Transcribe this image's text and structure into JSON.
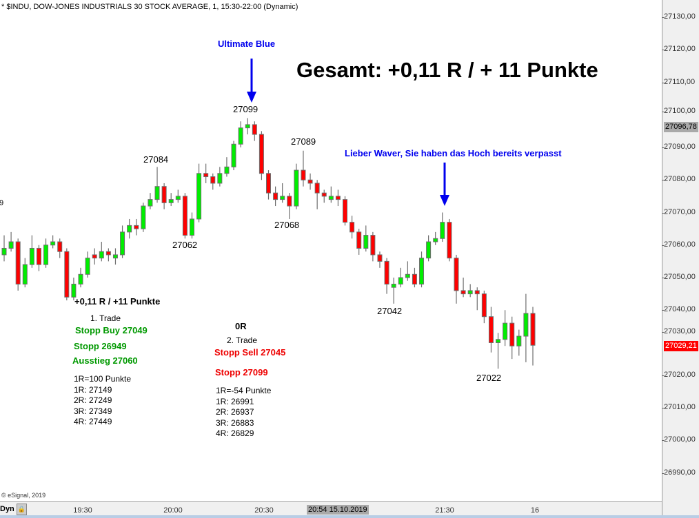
{
  "header": {
    "title": "* $INDU, DOW-JONES INDUSTRIALS 30 STOCK AVERAGE, 1, 15:30-22:00 (Dynamic)",
    "copyright": "© eSignal, 2019"
  },
  "colors": {
    "up": "#00ee00",
    "down": "#ff0000",
    "wick": "#6e6e6e",
    "annotation_blue": "#0000ee",
    "green_text": "#009900",
    "red_text": "#ee0000"
  },
  "footer": {
    "dyn_label": "Dyn",
    "lock_icon": "lock-icon"
  },
  "chart_data": {
    "type": "candlestick",
    "title": "",
    "y_ticks": [
      "27130,00",
      "27120,00",
      "27110,00",
      "27100,00",
      "27090,00",
      "27080,00",
      "27070,00",
      "27060,00",
      "27050,00",
      "27040,00",
      "27030,00",
      "27020,00",
      "27010,00",
      "27000,00",
      "26990,00"
    ],
    "ylim": [
      26980,
      27135
    ],
    "x_ticks": [
      "19:30",
      "20:00",
      "20:30",
      "21:30",
      "16"
    ],
    "cursor_label": "20:54 15.10.2019",
    "last_price": "27029,21",
    "marker_price": "27096,78",
    "left_edge_label": "9",
    "ohlc": [
      [
        27057,
        27063,
        27055,
        27059
      ],
      [
        27059,
        27064,
        27058,
        27061
      ],
      [
        27061,
        27062,
        27046,
        27048
      ],
      [
        27048,
        27056,
        27047,
        27054
      ],
      [
        27054,
        27063,
        27053,
        27059
      ],
      [
        27059,
        27060,
        27052,
        27054
      ],
      [
        27054,
        27062,
        27053,
        27060
      ],
      [
        27060,
        27063,
        27059,
        27061
      ],
      [
        27061,
        27062,
        27056,
        27058
      ],
      [
        27058,
        27059,
        27043,
        27044
      ],
      [
        27044,
        27050,
        27043,
        27048
      ],
      [
        27048,
        27053,
        27047,
        27051
      ],
      [
        27051,
        27058,
        27050,
        27056
      ],
      [
        27057,
        27059,
        27054,
        27056
      ],
      [
        27056,
        27061,
        27055,
        27058
      ],
      [
        27058,
        27059,
        27055,
        27057
      ],
      [
        27056,
        27059,
        27054,
        27057
      ],
      [
        27057,
        27066,
        27056,
        27064
      ],
      [
        27064,
        27068,
        27062,
        27066
      ],
      [
        27066,
        27068,
        27063,
        27065
      ],
      [
        27065,
        27073,
        27064,
        27072
      ],
      [
        27072,
        27076,
        27071,
        27074
      ],
      [
        27074,
        27084,
        27073,
        27078
      ],
      [
        27078,
        27079,
        27071,
        27073
      ],
      [
        27073,
        27076,
        27072,
        27074
      ],
      [
        27074,
        27077,
        27073,
        27075
      ],
      [
        27075,
        27076,
        27062,
        27063
      ],
      [
        27063,
        27070,
        27062,
        27068
      ],
      [
        27068,
        27085,
        27067,
        27082
      ],
      [
        27082,
        27085,
        27079,
        27081
      ],
      [
        27081,
        27082,
        27077,
        27079
      ],
      [
        27079,
        27084,
        27078,
        27082
      ],
      [
        27082,
        27087,
        27081,
        27084
      ],
      [
        27084,
        27092,
        27083,
        27091
      ],
      [
        27091,
        27098,
        27090,
        27096
      ],
      [
        27096,
        27099,
        27094,
        27097
      ],
      [
        27097,
        27098,
        27092,
        27094
      ],
      [
        27094,
        27095,
        27080,
        27082
      ],
      [
        27082,
        27083,
        27074,
        27076
      ],
      [
        27076,
        27078,
        27072,
        27074
      ],
      [
        27074,
        27079,
        27073,
        27075
      ],
      [
        27075,
        27076,
        27068,
        27072
      ],
      [
        27072,
        27085,
        27071,
        27083
      ],
      [
        27083,
        27089,
        27078,
        27080
      ],
      [
        27080,
        27082,
        27077,
        27079
      ],
      [
        27079,
        27080,
        27071,
        27076
      ],
      [
        27076,
        27077,
        27073,
        27075
      ],
      [
        27074,
        27078,
        27073,
        27075
      ],
      [
        27075,
        27077,
        27072,
        27074
      ],
      [
        27074,
        27075,
        27066,
        27067
      ],
      [
        27067,
        27069,
        27062,
        27064
      ],
      [
        27064,
        27065,
        27057,
        27059
      ],
      [
        27059,
        27066,
        27058,
        27063
      ],
      [
        27063,
        27064,
        27055,
        27057
      ],
      [
        27057,
        27058,
        27053,
        27055
      ],
      [
        27055,
        27056,
        27045,
        27048
      ],
      [
        27047,
        27050,
        27042,
        27048
      ],
      [
        27048,
        27053,
        27047,
        27050
      ],
      [
        27050,
        27055,
        27049,
        27051
      ],
      [
        27051,
        27053,
        27047,
        27048
      ],
      [
        27048,
        27058,
        27047,
        27056
      ],
      [
        27056,
        27063,
        27055,
        27061
      ],
      [
        27061,
        27064,
        27060,
        27062
      ],
      [
        27062,
        27070,
        27061,
        27067
      ],
      [
        27067,
        27068,
        27055,
        27056
      ],
      [
        27056,
        27057,
        27042,
        27046
      ],
      [
        27046,
        27050,
        27044,
        27045
      ],
      [
        27045,
        27048,
        27044,
        27046
      ],
      [
        27046,
        27047,
        27040,
        27045
      ],
      [
        27045,
        27046,
        27036,
        27038
      ],
      [
        27038,
        27041,
        27027,
        27030
      ],
      [
        27030,
        27033,
        27022,
        27031
      ],
      [
        27031,
        27040,
        27029,
        27036
      ],
      [
        27036,
        27038,
        27025,
        27029
      ],
      [
        27029,
        27034,
        27026,
        27032
      ],
      [
        27032,
        27045,
        27024,
        27039
      ],
      [
        27039,
        27041,
        27023,
        27029.21
      ]
    ]
  },
  "price_labels": [
    "27099",
    "27084",
    "27062",
    "27089",
    "27068",
    "27042",
    "27022"
  ],
  "annotations": {
    "ultimate_blue": "Ultimate Blue",
    "total": "Gesamt: +0,11 R / + 11 Punkte",
    "lieber_waver": "Lieber Waver, Sie haben das Hoch bereits verpasst",
    "trade1": {
      "result": "+0,11 R / +11 Punkte",
      "title": "1. Trade",
      "entry": "Stopp Buy 27049",
      "stop": "Stopp 26949",
      "exit": "Ausstieg 27060",
      "lines": [
        "1R=100 Punkte",
        "1R: 27149",
        "2R: 27249",
        "3R: 27349",
        "4R: 27449"
      ]
    },
    "trade2": {
      "result": "0R",
      "title": "2. Trade",
      "entry": "Stopp Sell 27045",
      "stop": "Stopp 27099",
      "lines": [
        "1R=-54 Punkte",
        "1R: 26991",
        "2R: 26937",
        "3R: 26883",
        "4R: 26829"
      ]
    }
  }
}
